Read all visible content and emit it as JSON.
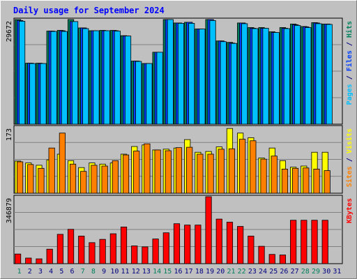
{
  "chart_data": {
    "type": "bar",
    "title": "Daily usage for September 2024",
    "colors": {
      "background": "#c0c0c0",
      "plot": "#c0c0c0",
      "grid": "#808080",
      "title": "#0000ff",
      "hits": "#00805c",
      "files": "#0040ff",
      "pages": "#00c0ff",
      "visits": "#ffff00",
      "sites": "#ff8000",
      "kbytes": "#ff0000",
      "weekend": "#00805c",
      "weekday": "#000080",
      "outline": "#000000"
    },
    "x": [
      "1",
      "2",
      "3",
      "4",
      "5",
      "6",
      "7",
      "8",
      "9",
      "10",
      "11",
      "12",
      "13",
      "14",
      "15",
      "16",
      "17",
      "18",
      "19",
      "20",
      "21",
      "22",
      "23",
      "24",
      "25",
      "26",
      "27",
      "28",
      "29",
      "30",
      "31"
    ],
    "weekend_days": [
      "1",
      "7",
      "8",
      "14",
      "15",
      "21",
      "22",
      "28",
      "29"
    ],
    "panels": [
      {
        "ymax_label": "29672",
        "ymax": 29672,
        "side_labels": [
          {
            "text": "Hits",
            "color": "#00805c"
          },
          {
            "text": " / ",
            "color": "#000080"
          },
          {
            "text": "Files",
            "color": "#0040ff"
          },
          {
            "text": " / ",
            "color": "#000080"
          },
          {
            "text": "Pages",
            "color": "#00c0ff"
          }
        ],
        "series": [
          {
            "name": "Hits",
            "color": "#00805c",
            "values": [
              29672,
              17300,
              17300,
              26400,
              26600,
              31200,
              27300,
              26500,
              26600,
              26600,
              25100,
              17900,
              17200,
              20400,
              32600,
              28700,
              28900,
              27000,
              29700,
              23600,
              23200,
              28700,
              27400,
              27400,
              26200,
              27400,
              28400,
              27700,
              28800,
              28400,
              null
            ]
          },
          {
            "name": "Files",
            "color": "#0040ff",
            "values": [
              29400,
              17300,
              17200,
              26400,
              26500,
              29100,
              27300,
              26500,
              26500,
              26500,
              25000,
              17900,
              17200,
              20400,
              30900,
              28700,
              28900,
              27000,
              29700,
              23600,
              23000,
              28700,
              27200,
              27200,
              26000,
              27200,
              28200,
              27600,
              28700,
              28400,
              null
            ]
          },
          {
            "name": "Pages",
            "color": "#00c0ff",
            "values": [
              29200,
              17200,
              17200,
              26300,
              26300,
              29100,
              27100,
              26500,
              26500,
              26400,
              25000,
              17800,
              17200,
              20400,
              30900,
              28600,
              28600,
              27000,
              29400,
              23400,
              22900,
              28500,
              27100,
              27200,
              26000,
              27100,
              28000,
              27400,
              28500,
              28300,
              null
            ]
          }
        ]
      },
      {
        "ymax_label": "173",
        "ymax": 173,
        "side_labels": [
          {
            "text": "Visits",
            "color": "#ffff00"
          },
          {
            "text": " / ",
            "color": "#000080"
          },
          {
            "text": "Sites",
            "color": "#ff8000"
          }
        ],
        "series": [
          {
            "name": "Visits",
            "color": "#ffff00",
            "values": [
              84,
              79,
              73,
              87,
              102,
              85,
              67,
              79,
              76,
              79,
              102,
              122,
              126,
              113,
              115,
              118,
              140,
              107,
              109,
              121,
              169,
              157,
              145,
              92,
              118,
              85,
              68,
              71,
              107,
              107,
              null
            ]
          },
          {
            "name": "Sites",
            "color": "#ff8000",
            "values": [
              82,
              75,
              65,
              118,
              157,
              76,
              57,
              73,
              71,
              85,
              100,
              110,
              129,
              113,
              111,
              119,
              120,
              102,
              102,
              115,
              116,
              141,
              137,
              89,
              97,
              63,
              65,
              66,
              63,
              59,
              null
            ]
          }
        ]
      },
      {
        "ymax_label": "346879",
        "ymax": 346879,
        "side_labels": [
          {
            "text": "KBytes",
            "color": "#ff0000"
          }
        ],
        "series": [
          {
            "name": "KBytes",
            "color": "#ff0000",
            "values": [
              50000,
              29000,
              25000,
              75000,
              152000,
              178000,
              143000,
              109000,
              126000,
              155000,
              190000,
              92000,
              87000,
              128000,
              160000,
              207000,
              200000,
              200000,
              350000,
              231000,
              215000,
              193000,
              143000,
              90000,
              48000,
              45000,
              225000,
              225000,
              225000,
              225000,
              null
            ]
          }
        ]
      }
    ]
  }
}
